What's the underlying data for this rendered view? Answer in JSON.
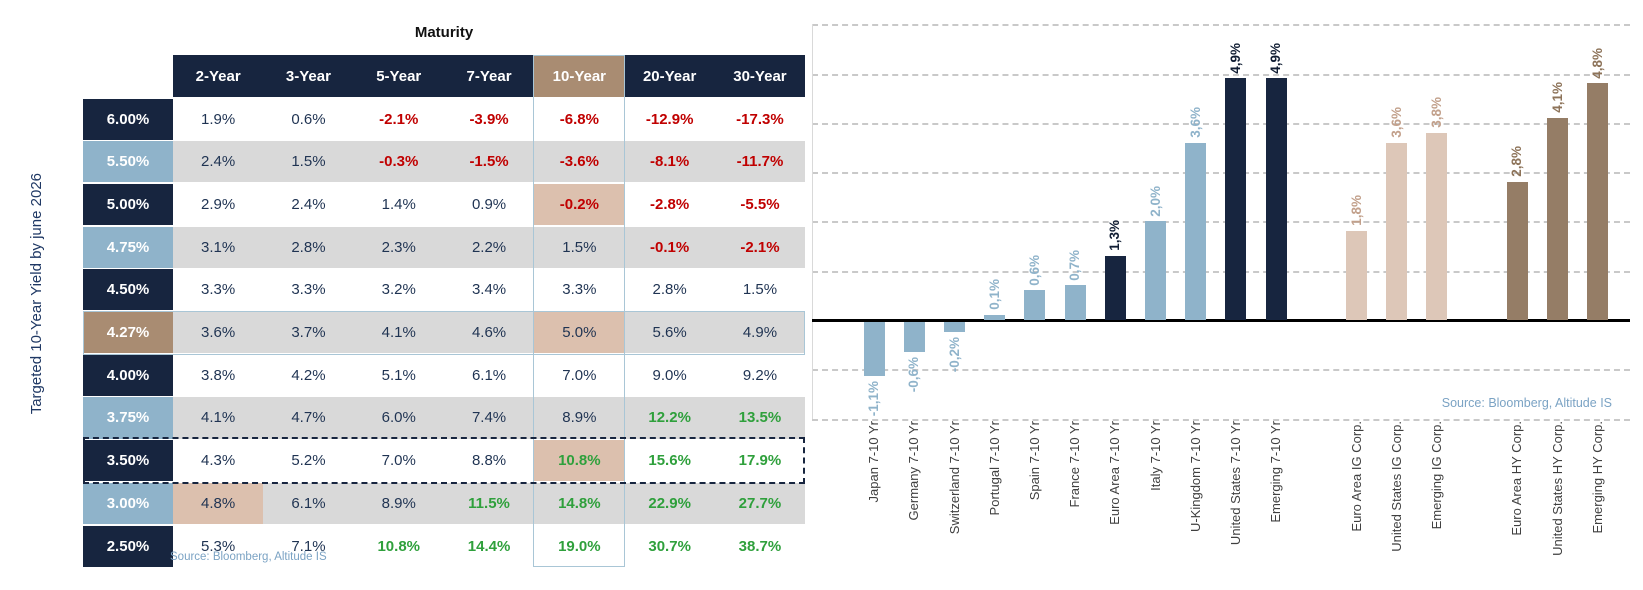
{
  "table": {
    "title": "Maturity",
    "y_axis_label": "Targeted 10-Year Yield by june 2026",
    "columns": [
      "2-Year",
      "3-Year",
      "5-Year",
      "7-Year",
      "10-Year",
      "20-Year",
      "30-Year"
    ],
    "rows": [
      {
        "yield": "6.00%",
        "header_color": "navy",
        "cells": [
          {
            "v": "1.9%",
            "c": "pos"
          },
          {
            "v": "0.6%",
            "c": "pos"
          },
          {
            "v": "-2.1%",
            "c": "neg"
          },
          {
            "v": "-3.9%",
            "c": "neg"
          },
          {
            "v": "-6.8%",
            "c": "neg"
          },
          {
            "v": "-12.9%",
            "c": "neg"
          },
          {
            "v": "-17.3%",
            "c": "neg"
          }
        ]
      },
      {
        "yield": "5.50%",
        "header_color": "blue",
        "cells": [
          {
            "v": "2.4%",
            "c": "pos"
          },
          {
            "v": "1.5%",
            "c": "pos"
          },
          {
            "v": "-0.3%",
            "c": "neg"
          },
          {
            "v": "-1.5%",
            "c": "neg"
          },
          {
            "v": "-3.6%",
            "c": "neg"
          },
          {
            "v": "-8.1%",
            "c": "neg"
          },
          {
            "v": "-11.7%",
            "c": "neg"
          }
        ]
      },
      {
        "yield": "5.00%",
        "header_color": "navy",
        "cells": [
          {
            "v": "2.9%",
            "c": "pos"
          },
          {
            "v": "2.4%",
            "c": "pos"
          },
          {
            "v": "1.4%",
            "c": "pos"
          },
          {
            "v": "0.9%",
            "c": "pos"
          },
          {
            "v": "-0.2%",
            "c": "neg",
            "hl": true
          },
          {
            "v": "-2.8%",
            "c": "neg"
          },
          {
            "v": "-5.5%",
            "c": "neg"
          }
        ]
      },
      {
        "yield": "4.75%",
        "header_color": "blue",
        "cells": [
          {
            "v": "3.1%",
            "c": "pos"
          },
          {
            "v": "2.8%",
            "c": "pos"
          },
          {
            "v": "2.3%",
            "c": "pos"
          },
          {
            "v": "2.2%",
            "c": "pos"
          },
          {
            "v": "1.5%",
            "c": "pos"
          },
          {
            "v": "-0.1%",
            "c": "neg"
          },
          {
            "v": "-2.1%",
            "c": "neg"
          }
        ]
      },
      {
        "yield": "4.50%",
        "header_color": "navy",
        "cells": [
          {
            "v": "3.3%",
            "c": "pos"
          },
          {
            "v": "3.3%",
            "c": "pos"
          },
          {
            "v": "3.2%",
            "c": "pos"
          },
          {
            "v": "3.4%",
            "c": "pos"
          },
          {
            "v": "3.3%",
            "c": "pos"
          },
          {
            "v": "2.8%",
            "c": "pos"
          },
          {
            "v": "1.5%",
            "c": "pos"
          }
        ]
      },
      {
        "yield": "4.27%",
        "header_color": "tan",
        "cells": [
          {
            "v": "3.6%",
            "c": "pos"
          },
          {
            "v": "3.7%",
            "c": "pos"
          },
          {
            "v": "4.1%",
            "c": "pos"
          },
          {
            "v": "4.6%",
            "c": "pos"
          },
          {
            "v": "5.0%",
            "c": "pos",
            "hl": true
          },
          {
            "v": "5.6%",
            "c": "pos"
          },
          {
            "v": "4.9%",
            "c": "pos"
          }
        ]
      },
      {
        "yield": "4.00%",
        "header_color": "navy",
        "cells": [
          {
            "v": "3.8%",
            "c": "pos"
          },
          {
            "v": "4.2%",
            "c": "pos"
          },
          {
            "v": "5.1%",
            "c": "pos"
          },
          {
            "v": "6.1%",
            "c": "pos"
          },
          {
            "v": "7.0%",
            "c": "pos"
          },
          {
            "v": "9.0%",
            "c": "pos"
          },
          {
            "v": "9.2%",
            "c": "pos"
          }
        ]
      },
      {
        "yield": "3.75%",
        "header_color": "blue",
        "cells": [
          {
            "v": "4.1%",
            "c": "pos"
          },
          {
            "v": "4.7%",
            "c": "pos"
          },
          {
            "v": "6.0%",
            "c": "pos"
          },
          {
            "v": "7.4%",
            "c": "pos"
          },
          {
            "v": "8.9%",
            "c": "pos"
          },
          {
            "v": "12.2%",
            "c": "gain"
          },
          {
            "v": "13.5%",
            "c": "gain"
          }
        ]
      },
      {
        "yield": "3.50%",
        "header_color": "navy",
        "cells": [
          {
            "v": "4.3%",
            "c": "pos"
          },
          {
            "v": "5.2%",
            "c": "pos"
          },
          {
            "v": "7.0%",
            "c": "pos"
          },
          {
            "v": "8.8%",
            "c": "pos"
          },
          {
            "v": "10.8%",
            "c": "gain",
            "hl": true
          },
          {
            "v": "15.6%",
            "c": "gain"
          },
          {
            "v": "17.9%",
            "c": "gain"
          }
        ]
      },
      {
        "yield": "3.00%",
        "header_color": "blue",
        "cells": [
          {
            "v": "4.8%",
            "c": "pos",
            "hl": true
          },
          {
            "v": "6.1%",
            "c": "pos"
          },
          {
            "v": "8.9%",
            "c": "pos"
          },
          {
            "v": "11.5%",
            "c": "gain"
          },
          {
            "v": "14.8%",
            "c": "gain"
          },
          {
            "v": "22.9%",
            "c": "gain"
          },
          {
            "v": "27.7%",
            "c": "gain"
          }
        ]
      },
      {
        "yield": "2.50%",
        "header_color": "navy",
        "cells": [
          {
            "v": "5.3%",
            "c": "pos"
          },
          {
            "v": "7.1%",
            "c": "pos"
          },
          {
            "v": "10.8%",
            "c": "gain"
          },
          {
            "v": "14.4%",
            "c": "gain"
          },
          {
            "v": "19.0%",
            "c": "gain"
          },
          {
            "v": "30.7%",
            "c": "gain"
          },
          {
            "v": "38.7%",
            "c": "gain"
          }
        ]
      }
    ],
    "highlight": {
      "column_index": 4,
      "row_blue_index": 5,
      "row_dashed_index": 8
    },
    "source": "Source: Bloomberg, Altitude IS"
  },
  "chart_data": {
    "type": "bar",
    "title": "",
    "xlabel": "",
    "ylabel": "",
    "ylim": [
      -2,
      6
    ],
    "gridline_values": [
      6,
      5,
      4,
      3,
      2,
      1,
      -1,
      -2
    ],
    "grid": "dashed-horizontal",
    "legend": "none",
    "decimal_separator": ",",
    "bars": [
      {
        "label": "Japan 7-10 Yr",
        "value": -1.1,
        "display": "-1,1%",
        "group": "sov_light",
        "slot": 0
      },
      {
        "label": "Germany 7-10 Yr",
        "value": -0.6,
        "display": "-0,6%",
        "group": "sov_light",
        "slot": 1
      },
      {
        "label": "Switzerland 7-10 Yr",
        "value": -0.2,
        "display": "-0,2%",
        "group": "sov_light",
        "slot": 2
      },
      {
        "label": "Portugal 7-10 Yr",
        "value": 0.1,
        "display": "0,1%",
        "group": "sov_light",
        "slot": 3
      },
      {
        "label": "Spain 7-10 Yr",
        "value": 0.6,
        "display": "0,6%",
        "group": "sov_light",
        "slot": 4
      },
      {
        "label": "France 7-10 Yr",
        "value": 0.7,
        "display": "0,7%",
        "group": "sov_light",
        "slot": 5
      },
      {
        "label": "Euro Area 7-10 Yr",
        "value": 1.3,
        "display": "1,3%",
        "group": "sov_dark",
        "slot": 6
      },
      {
        "label": "Italy 7-10 Yr",
        "value": 2.0,
        "display": "2,0%",
        "group": "sov_light",
        "slot": 7
      },
      {
        "label": "U-Kingdom 7-10 Yr",
        "value": 3.6,
        "display": "3,6%",
        "group": "sov_light",
        "slot": 8
      },
      {
        "label": "United States 7-10 Yr",
        "value": 4.9,
        "display": "4,9%",
        "group": "sov_dark",
        "slot": 9
      },
      {
        "label": "Emerging 7-10 Yr",
        "value": 4.9,
        "display": "4,9%",
        "group": "sov_dark",
        "slot": 10
      },
      {
        "label": "Euro Area IG Corp.",
        "value": 1.8,
        "display": "1,8%",
        "group": "ig",
        "slot": 12
      },
      {
        "label": "United States IG Corp.",
        "value": 3.6,
        "display": "3,6%",
        "group": "ig",
        "slot": 13
      },
      {
        "label": "Emerging IG Corp.",
        "value": 3.8,
        "display": "3,8%",
        "group": "ig",
        "slot": 14
      },
      {
        "label": "Euro Area HY Corp.",
        "value": 2.8,
        "display": "2,8%",
        "group": "hy",
        "slot": 16
      },
      {
        "label": "United States HY Corp.",
        "value": 4.1,
        "display": "4,1%",
        "group": "hy",
        "slot": 17
      },
      {
        "label": "Emerging HY Corp.",
        "value": 4.8,
        "display": "4,8%",
        "group": "hy",
        "slot": 18
      }
    ],
    "source": "Source: Bloomberg, Altitude IS"
  },
  "colors": {
    "navy": "#17253f",
    "light_blue": "#8fb3ca",
    "tan_header": "#a98c72",
    "tan_cell": "#dcc0ae",
    "row_gray": "#d9d9d9",
    "value_navy": "#1f3352",
    "loss_red": "#c00000",
    "gain_green": "#2fa03c",
    "border_blue": "#a9c6d6",
    "ig_bar": "#ddc7b8",
    "hy_bar": "#957d66",
    "ig_label": "#c2a08b",
    "hy_label": "#8d7359",
    "sov_dark_label": "#101d33",
    "source_blue": "#7ba3c4",
    "gridline_gray": "#c9c9c9",
    "axis_black": "#000000"
  }
}
